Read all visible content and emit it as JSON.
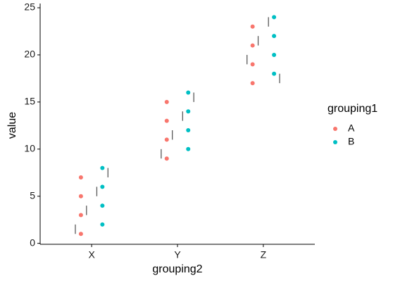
{
  "chart_data": {
    "type": "scatter",
    "x_label": "grouping2",
    "y_label": "value",
    "legend_title": "grouping1",
    "legend_position": "right",
    "categories": [
      "X",
      "Y",
      "Z"
    ],
    "xlim": [
      0.4,
      3.6
    ],
    "ylim": [
      -0.1,
      25.45
    ],
    "yticks": [
      0,
      5,
      10,
      15,
      20,
      25
    ],
    "grid": false,
    "series": [
      {
        "name": "A",
        "color": "#F8766D",
        "x": [
          "X",
          "X",
          "X",
          "X",
          "Y",
          "Y",
          "Y",
          "Y",
          "Z",
          "Z",
          "Z",
          "Z"
        ],
        "values": [
          1,
          3,
          5,
          7,
          9,
          11,
          13,
          15,
          17,
          19,
          21,
          23
        ]
      },
      {
        "name": "B",
        "color": "#00BFC4",
        "x": [
          "X",
          "X",
          "X",
          "X",
          "Y",
          "Y",
          "Y",
          "Y",
          "Z",
          "Z",
          "Z",
          "Z"
        ],
        "values": [
          2,
          4,
          6,
          8,
          10,
          12,
          14,
          16,
          18,
          20,
          22,
          24
        ]
      }
    ],
    "segments": {
      "color": "#595959",
      "x": [
        0.81,
        0.94,
        1.06,
        1.19,
        1.81,
        1.94,
        2.06,
        2.19,
        2.81,
        2.94,
        3.06,
        3.19
      ],
      "ymin": [
        1,
        3,
        5,
        7,
        9,
        11,
        13,
        15,
        19,
        21,
        23,
        17
      ],
      "ymax": [
        2,
        4,
        6,
        8,
        10,
        12,
        14,
        16,
        20,
        22,
        24,
        18
      ]
    }
  }
}
